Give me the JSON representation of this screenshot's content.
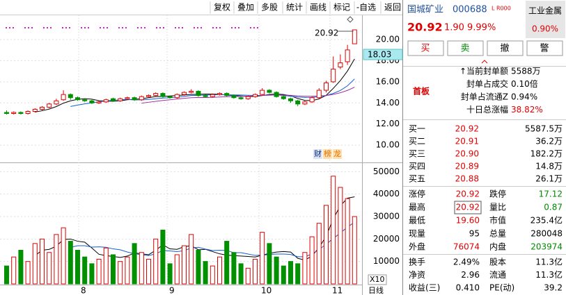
{
  "toolbar": [
    "复权",
    "叠加",
    "多股",
    "统计",
    "画线",
    "标记",
    "-自选",
    "返回"
  ],
  "chart": {
    "type": "candlestick",
    "ylim": [
      8.5,
      22.3
    ],
    "yticks": [
      {
        "value": 10,
        "label": "10.00"
      },
      {
        "value": 12,
        "label": "12.00"
      },
      {
        "value": 14,
        "label": "14.00"
      },
      {
        "value": 16,
        "label": "16.00"
      },
      {
        "value": 18,
        "label": "18.00"
      },
      {
        "value": 20,
        "label": "20.00"
      }
    ],
    "open": [
      13.1,
      13.0,
      13.1,
      13.0,
      13.2,
      13.4,
      13.6,
      13.9,
      14.3,
      14.8,
      14.5,
      14.3,
      14.2,
      14.0,
      14.1,
      14.4,
      14.2,
      14.4,
      14.5,
      14.3,
      14.6,
      14.7,
      14.9,
      14.6,
      14.5,
      14.8,
      15.0,
      15.1,
      14.7,
      14.6,
      14.8,
      14.9,
      14.7,
      14.5,
      14.4,
      14.6,
      14.8,
      15.2,
      15.0,
      14.6,
      14.4,
      14.2,
      13.9,
      14.1,
      14.5,
      15.2,
      16.0,
      17.4,
      17.9,
      19.6
    ],
    "high": [
      13.3,
      13.2,
      13.2,
      13.3,
      13.5,
      13.7,
      14.0,
      14.4,
      15.2,
      14.9,
      14.6,
      14.4,
      14.3,
      14.2,
      14.4,
      14.5,
      14.5,
      14.6,
      14.6,
      14.7,
      14.8,
      15.0,
      15.0,
      14.7,
      14.9,
      15.1,
      15.3,
      15.2,
      14.8,
      14.9,
      15.0,
      15.0,
      14.8,
      14.6,
      14.7,
      14.9,
      15.4,
      15.3,
      15.1,
      14.7,
      14.5,
      14.3,
      14.2,
      14.6,
      15.4,
      16.1,
      18.4,
      18.6,
      19.5,
      20.92
    ],
    "low": [
      12.9,
      12.9,
      12.9,
      12.9,
      13.1,
      13.3,
      13.5,
      13.8,
      14.2,
      14.3,
      14.2,
      14.1,
      13.9,
      13.9,
      14.0,
      14.1,
      14.1,
      14.3,
      14.2,
      14.2,
      14.5,
      14.6,
      14.5,
      14.4,
      14.4,
      14.7,
      14.9,
      14.6,
      14.5,
      14.5,
      14.7,
      14.6,
      14.4,
      14.3,
      14.3,
      14.5,
      14.7,
      14.9,
      14.5,
      14.3,
      14.0,
      13.7,
      13.8,
      14.0,
      14.4,
      15.0,
      15.9,
      17.2,
      17.6,
      19.6
    ],
    "close": [
      13.0,
      13.1,
      13.0,
      13.2,
      13.4,
      13.6,
      13.9,
      14.2,
      14.8,
      14.5,
      14.3,
      14.2,
      14.0,
      14.1,
      14.3,
      14.2,
      14.4,
      14.5,
      14.3,
      14.6,
      14.7,
      14.9,
      14.6,
      14.5,
      14.8,
      15.0,
      15.1,
      14.7,
      14.6,
      14.8,
      14.9,
      14.7,
      14.5,
      14.4,
      14.6,
      14.8,
      15.2,
      15.0,
      14.6,
      14.4,
      14.2,
      13.9,
      14.1,
      14.5,
      15.2,
      15.9,
      17.2,
      17.8,
      19.02,
      20.92
    ],
    "volume": [
      8000,
      12000,
      15000,
      10000,
      18000,
      20000,
      14000,
      22000,
      25000,
      19000,
      15000,
      12000,
      9000,
      11000,
      16000,
      13000,
      10000,
      12000,
      18000,
      14000,
      11000,
      20000,
      24000,
      9000,
      13000,
      17000,
      22000,
      15000,
      10000,
      8000,
      12000,
      19000,
      14000,
      9000,
      7000,
      11000,
      23000,
      18000,
      12000,
      8000,
      10000,
      9000,
      14000,
      21000,
      27000,
      35000,
      48000,
      43000,
      38000,
      30000
    ],
    "vol_ylim": [
      0,
      53500
    ],
    "vol_yticks": [
      10000,
      20000,
      30000,
      40000,
      50000
    ],
    "annotation": "20.92",
    "cursor_price": "18.03",
    "badges": [
      "财",
      "榜",
      "龙"
    ],
    "volume_scale": "X10",
    "period": "日线",
    "months": [
      "8",
      "9",
      "10",
      "11"
    ]
  },
  "quote": {
    "name": "国城矿业",
    "code": "000688",
    "flags": "L R000",
    "sector": "工业金属",
    "sector_change": "0.90%",
    "price": "20.92",
    "change": "1.90",
    "change_pct": "9.99%"
  },
  "buttons": [
    "买",
    "卖",
    "撤",
    "警"
  ],
  "limit_up": {
    "tag": "首板",
    "rows": [
      [
        "↑当前封单额",
        "5588万"
      ],
      [
        "封单占成交",
        "0.10倍"
      ],
      [
        "封单占流通Z",
        "0.94%"
      ],
      [
        "十日总涨幅",
        "38.82%"
      ]
    ]
  },
  "order_book": [
    [
      "买一",
      "20.92",
      "5587.5万"
    ],
    [
      "买二",
      "20.91",
      "36.2万"
    ],
    [
      "买三",
      "20.90",
      "182.2万"
    ],
    [
      "买四",
      "20.89",
      "14.8万"
    ],
    [
      "买五",
      "20.88",
      "26.1万"
    ]
  ],
  "stats": [
    [
      "涨停",
      "20.92",
      "跌停",
      "17.12"
    ],
    [
      "最高",
      "20.92",
      "量比",
      "0.87"
    ],
    [
      "最低",
      "19.60",
      "市值",
      "235.4亿"
    ],
    [
      "现量",
      "95",
      "总量",
      "280048"
    ],
    [
      "外盘",
      "76074",
      "内盘",
      "203974"
    ]
  ],
  "finance": [
    [
      "换手",
      "2.49%",
      "股本",
      "11.3亿"
    ],
    [
      "净资",
      "2.96",
      "流通",
      "11.3亿"
    ],
    [
      "收益(三)",
      "0.410",
      "PE(动)",
      "39.2"
    ]
  ]
}
